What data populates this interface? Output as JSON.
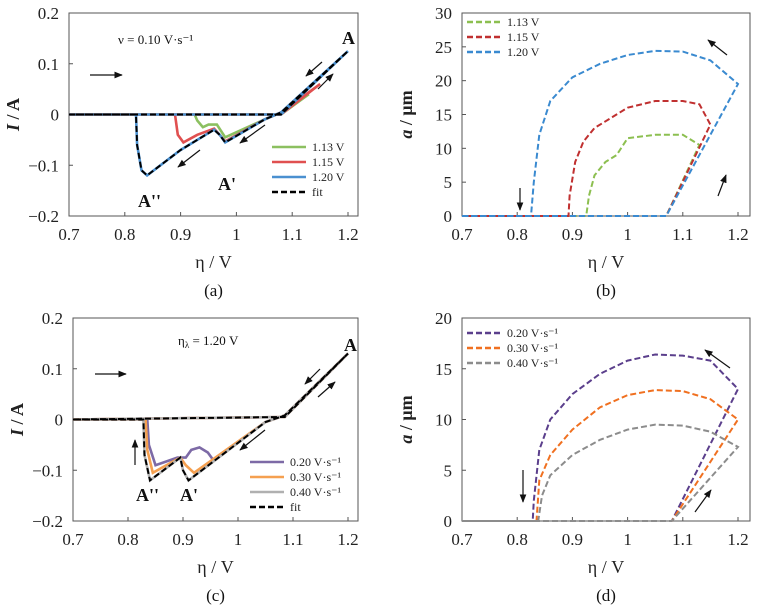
{
  "chart_data": [
    {
      "panel": "a",
      "caption": "(a)",
      "type": "line",
      "xlabel": "η / V",
      "ylabel_var": "I",
      "ylabel_unit": " / A",
      "xlim": [
        0.7,
        1.2
      ],
      "ylim": [
        -0.2,
        0.2
      ],
      "xticks": [
        0.7,
        0.8,
        0.9,
        1.0,
        1.1,
        1.2
      ],
      "xtick_labels": [
        "0.7",
        "0.8",
        "0.9",
        "1",
        "1.1",
        "1.2"
      ],
      "yticks": [
        -0.2,
        -0.1,
        0,
        0.1,
        0.2
      ],
      "ytick_labels": [
        "−0.2",
        "−0.1",
        "0",
        "0.1",
        "0.2"
      ],
      "legend_position": "bottom-right",
      "annotations": [
        "ν = 0.10 V·s⁻¹",
        "A",
        "A'",
        "A''"
      ],
      "series": [
        {
          "name": "1.13 V",
          "color": "#8cc060",
          "style": "solid",
          "x": [
            0.7,
            1.08,
            1.13,
            1.08,
            1.05,
            0.98,
            0.965,
            0.95,
            0.94,
            0.93,
            0.925,
            0.7
          ],
          "y": [
            0,
            0,
            0.04,
            0.004,
            -0.01,
            -0.045,
            -0.02,
            -0.02,
            -0.025,
            -0.012,
            0,
            0
          ]
        },
        {
          "name": "1.15 V",
          "color": "#e05050",
          "style": "solid",
          "x": [
            0.7,
            1.08,
            1.15,
            1.08,
            1.05,
            0.98,
            0.97,
            0.96,
            0.93,
            0.905,
            0.895,
            0.89,
            0.7
          ],
          "y": [
            0,
            0,
            0.06,
            0.004,
            -0.01,
            -0.053,
            -0.04,
            -0.028,
            -0.04,
            -0.055,
            -0.04,
            0,
            0
          ]
        },
        {
          "name": "1.20 V",
          "color": "#4a90d0",
          "style": "solid",
          "x": [
            0.7,
            1.08,
            1.2,
            1.08,
            1.05,
            0.98,
            0.97,
            0.96,
            0.9,
            0.84,
            0.83,
            0.822,
            0.82,
            0.7
          ],
          "y": [
            0,
            0,
            0.125,
            0.004,
            -0.01,
            -0.055,
            -0.04,
            -0.03,
            -0.07,
            -0.12,
            -0.11,
            -0.06,
            0,
            0
          ]
        },
        {
          "name": "fit",
          "color": "#000000",
          "style": "dashed",
          "x": [
            0.7,
            1.08,
            1.2,
            1.08,
            1.05,
            0.98,
            0.97,
            0.96,
            0.9,
            0.84,
            0.83,
            0.822,
            0.82,
            0.7
          ],
          "y": [
            0,
            0,
            0.125,
            0.004,
            -0.01,
            -0.055,
            -0.04,
            -0.03,
            -0.07,
            -0.12,
            -0.11,
            -0.06,
            0,
            0
          ]
        }
      ]
    },
    {
      "panel": "b",
      "caption": "(b)",
      "type": "line",
      "xlabel": "η / V",
      "ylabel_var": "a",
      "ylabel_unit": " / μm",
      "xlim": [
        0.7,
        1.2
      ],
      "ylim": [
        0,
        30
      ],
      "xticks": [
        0.7,
        0.8,
        0.9,
        1.0,
        1.1,
        1.2
      ],
      "xtick_labels": [
        "0.7",
        "0.8",
        "0.9",
        "1",
        "1.1",
        "1.2"
      ],
      "yticks": [
        0,
        5,
        10,
        15,
        20,
        25,
        30
      ],
      "ytick_labels": [
        "0",
        "5",
        "10",
        "15",
        "20",
        "25",
        "30"
      ],
      "legend_position": "top-left",
      "series": [
        {
          "name": "1.13 V",
          "color": "#8cbf50",
          "style": "dashed",
          "x": [
            0.7,
            1.07,
            1.13,
            1.1,
            1.05,
            1.0,
            0.98,
            0.96,
            0.94,
            0.93,
            0.925,
            0.7
          ],
          "y": [
            0,
            0,
            10.5,
            12,
            12,
            11.5,
            9,
            8,
            6,
            3,
            0,
            0
          ]
        },
        {
          "name": "1.15 V",
          "color": "#c03030",
          "style": "dashed",
          "x": [
            0.7,
            1.07,
            1.15,
            1.13,
            1.1,
            1.05,
            1.0,
            0.96,
            0.94,
            0.92,
            0.905,
            0.895,
            0.893,
            0.7
          ],
          "y": [
            0,
            0,
            13.5,
            16.5,
            17,
            17,
            16,
            14,
            13,
            11,
            8,
            3,
            0,
            0
          ]
        },
        {
          "name": "1.20 V",
          "color": "#3a8ad0",
          "style": "dashed",
          "x": [
            0.7,
            1.07,
            1.2,
            1.15,
            1.1,
            1.05,
            1.0,
            0.95,
            0.9,
            0.86,
            0.84,
            0.83,
            0.825,
            0.7
          ],
          "y": [
            0,
            0,
            19.5,
            23,
            24.3,
            24.4,
            23.8,
            22.5,
            20.5,
            17,
            12,
            5,
            0,
            0
          ]
        }
      ]
    },
    {
      "panel": "c",
      "caption": "(c)",
      "type": "line",
      "xlabel": "η / V",
      "ylabel_var": "I",
      "ylabel_unit": " / A",
      "xlim": [
        0.7,
        1.2
      ],
      "ylim": [
        -0.2,
        0.2
      ],
      "xticks": [
        0.7,
        0.8,
        0.9,
        1.0,
        1.1,
        1.2
      ],
      "xtick_labels": [
        "0.7",
        "0.8",
        "0.9",
        "1",
        "1.1",
        "1.2"
      ],
      "yticks": [
        -0.2,
        -0.1,
        0,
        0.1,
        0.2
      ],
      "ytick_labels": [
        "−0.2",
        "−0.1",
        "0",
        "0.1",
        "0.2"
      ],
      "legend_position": "bottom-right",
      "annotations": [
        "η",
        "λ",
        " = 1.20 V",
        "A",
        "A'",
        "A''"
      ],
      "series": [
        {
          "name": "0.20 V·s⁻¹",
          "color": "#7d6aa6",
          "style": "solid",
          "x": [
            0.7,
            1.085,
            1.2,
            1.085,
            1.05,
            0.955,
            0.945,
            0.93,
            0.915,
            0.905,
            0.89,
            0.85,
            0.838,
            0.835,
            0.7
          ],
          "y": [
            0,
            0.005,
            0.13,
            0.008,
            -0.005,
            -0.08,
            -0.065,
            -0.055,
            -0.06,
            -0.075,
            -0.075,
            -0.09,
            -0.05,
            0,
            0
          ]
        },
        {
          "name": "0.30 V·s⁻¹",
          "color": "#f5a050",
          "style": "solid",
          "x": [
            0.7,
            1.085,
            1.2,
            1.085,
            1.05,
            0.92,
            0.905,
            0.895,
            0.845,
            0.835,
            0.832,
            0.7
          ],
          "y": [
            0,
            0.005,
            0.13,
            0.008,
            -0.005,
            -0.105,
            -0.09,
            -0.075,
            -0.105,
            -0.06,
            0,
            0
          ]
        },
        {
          "name": "0.40 V·s⁻¹",
          "color": "#b0b0b0",
          "style": "solid",
          "x": [
            0.7,
            1.085,
            1.2,
            1.085,
            1.05,
            0.91,
            0.9,
            0.895,
            0.84,
            0.83,
            0.828,
            0.7
          ],
          "y": [
            0,
            0.005,
            0.13,
            0.008,
            -0.005,
            -0.12,
            -0.1,
            -0.075,
            -0.12,
            -0.07,
            0,
            0
          ]
        },
        {
          "name": "fit",
          "color": "#000000",
          "style": "dashed",
          "x": [
            0.7,
            1.085,
            1.2,
            1.085,
            1.05,
            0.91,
            0.9,
            0.895,
            0.84,
            0.83,
            0.828,
            0.7
          ],
          "y": [
            0,
            0.005,
            0.13,
            0.008,
            -0.005,
            -0.12,
            -0.1,
            -0.075,
            -0.12,
            -0.07,
            0,
            0
          ]
        }
      ]
    },
    {
      "panel": "d",
      "caption": "(d)",
      "type": "line",
      "xlabel": "η / V",
      "ylabel_var": "a",
      "ylabel_unit": " / μm",
      "xlim": [
        0.7,
        1.2
      ],
      "ylim": [
        0,
        20
      ],
      "xticks": [
        0.7,
        0.8,
        0.9,
        1.0,
        1.1,
        1.2
      ],
      "xtick_labels": [
        "0.7",
        "0.8",
        "0.9",
        "1",
        "1.1",
        "1.2"
      ],
      "yticks": [
        0,
        5,
        10,
        15,
        20
      ],
      "ytick_labels": [
        "0",
        "5",
        "10",
        "15",
        "20"
      ],
      "legend_position": "top-left",
      "series": [
        {
          "name": "0.20 V·s⁻¹",
          "color": "#5b3f8c",
          "style": "dashed",
          "x": [
            0.7,
            1.08,
            1.2,
            1.15,
            1.1,
            1.05,
            1.0,
            0.95,
            0.9,
            0.86,
            0.84,
            0.83,
            0.828,
            0.7
          ],
          "y": [
            0,
            0,
            13,
            15.8,
            16.3,
            16.4,
            15.8,
            14.5,
            12.5,
            10,
            7,
            2,
            0,
            0
          ]
        },
        {
          "name": "0.30 V·s⁻¹",
          "color": "#f07020",
          "style": "dashed",
          "x": [
            0.7,
            1.08,
            1.2,
            1.15,
            1.1,
            1.05,
            1.0,
            0.95,
            0.9,
            0.86,
            0.84,
            0.835,
            0.7
          ],
          "y": [
            0,
            0,
            10,
            12,
            12.8,
            12.9,
            12.4,
            11.2,
            9,
            6.5,
            4,
            0,
            0
          ]
        },
        {
          "name": "0.40 V·s⁻¹",
          "color": "#8c8c8c",
          "style": "dashed",
          "x": [
            0.7,
            1.08,
            1.2,
            1.15,
            1.1,
            1.05,
            1.0,
            0.95,
            0.9,
            0.86,
            0.845,
            0.838,
            0.7
          ],
          "y": [
            0,
            0,
            7.3,
            8.8,
            9.4,
            9.5,
            9.0,
            8,
            6.5,
            4.5,
            2.5,
            0,
            0
          ]
        }
      ]
    }
  ]
}
